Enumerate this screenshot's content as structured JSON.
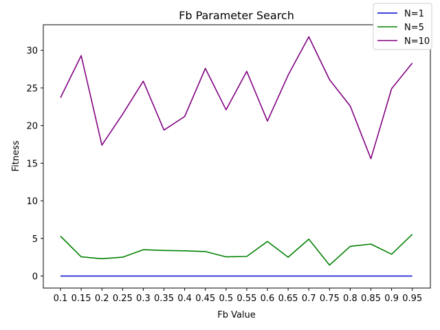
{
  "chart_data": {
    "type": "line",
    "title": "Fb Parameter Search",
    "xlabel": "Fb Value",
    "ylabel": "Fitness",
    "categories": [
      "0.1",
      "0.15",
      "0.2",
      "0.25",
      "0.3",
      "0.35",
      "0.4",
      "0.45",
      "0.5",
      "0.55",
      "0.6",
      "0.65",
      "0.7",
      "0.75",
      "0.8",
      "0.85",
      "0.9",
      "0.95"
    ],
    "ylim": [
      -1.6,
      33.4
    ],
    "yticks": [
      0,
      5,
      10,
      15,
      20,
      25,
      30
    ],
    "grid": false,
    "legend_position": "top-right",
    "series": [
      {
        "name": "N=1",
        "color": "#0000cc",
        "values": [
          0,
          0,
          0,
          0,
          0,
          0,
          0,
          0,
          0,
          0,
          0,
          0,
          0,
          0,
          0,
          0,
          0,
          0
        ]
      },
      {
        "name": "N=5",
        "color": "#008000",
        "values": [
          5.3,
          2.55,
          2.3,
          2.5,
          3.5,
          3.4,
          3.35,
          3.25,
          2.55,
          2.6,
          4.6,
          2.5,
          4.9,
          1.45,
          3.95,
          4.25,
          2.9,
          5.55
        ]
      },
      {
        "name": "N=10",
        "color": "#800080",
        "values": [
          23.7,
          29.3,
          17.4,
          21.5,
          25.9,
          19.4,
          21.2,
          27.6,
          22.1,
          27.2,
          20.6,
          26.7,
          31.8,
          26.1,
          22.6,
          15.6,
          24.9,
          28.3
        ]
      }
    ]
  }
}
